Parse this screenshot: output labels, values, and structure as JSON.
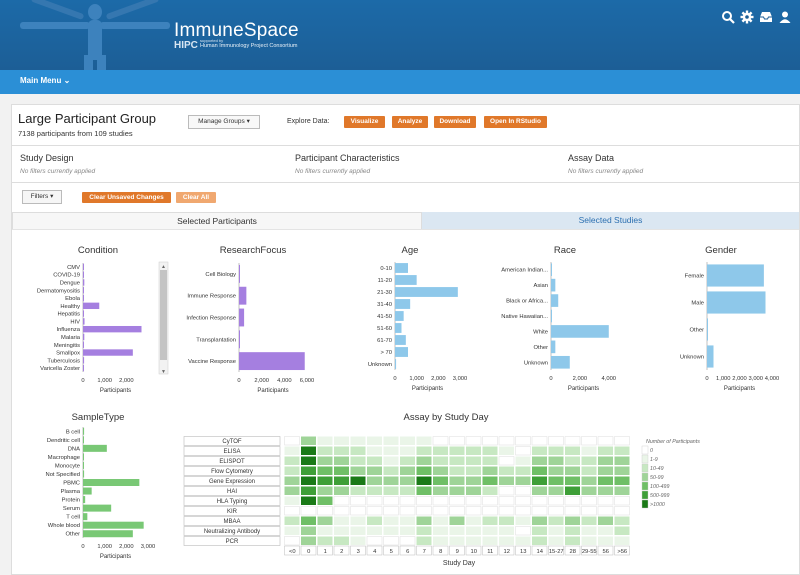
{
  "header": {
    "brand_title": "ImmuneSpace",
    "brand_sub_prefix": "HIPC",
    "brand_sub_small": "supported by",
    "brand_sub_text": "Human Immunology Project Consortium",
    "icons": [
      "search-icon",
      "gear-icon",
      "inbox-icon",
      "user-icon"
    ]
  },
  "menubar": {
    "main_menu": "Main Menu"
  },
  "group": {
    "title": "Large Participant Group",
    "count_text": "7138 participants from 109 studies",
    "manage_label": "Manage Groups",
    "explore_label": "Explore Data:",
    "buttons": [
      "Visualize",
      "Analyze",
      "Download",
      "Open In RStudio"
    ]
  },
  "sections": [
    {
      "title": "Study Design",
      "sub": "No filters currently applied"
    },
    {
      "title": "Participant Characteristics",
      "sub": "No filters currently applied"
    },
    {
      "title": "Assay Data",
      "sub": "No filters currently applied"
    }
  ],
  "filters": {
    "filters_label": "Filters",
    "clear_unsaved": "Clear Unsaved Changes",
    "clear_all": "Clear All"
  },
  "tabs": {
    "selected": "Selected Participants",
    "other": "Selected Studies"
  },
  "colors": {
    "condition": "#a57fe0",
    "age": "#8ec8ea",
    "sampletype": "#79c875",
    "orange": "#e0782a",
    "heat": [
      "#ffffff",
      "#eaf5e8",
      "#c7e8c2",
      "#9fd498",
      "#6fbf66",
      "#3e9f37",
      "#1a7a17"
    ]
  },
  "chart_data": [
    {
      "type": "bar",
      "title": "Condition",
      "xlabel": "Participants",
      "categories": [
        "CMV",
        "COVID-19",
        "Dengue",
        "Dermatomyositis",
        "Ebola",
        "Healthy",
        "Hepatitis",
        "HIV",
        "Influenza",
        "Malaria",
        "Meningitis",
        "Smallpox",
        "Tuberculosis",
        "Varicella Zoster"
      ],
      "values": [
        30,
        20,
        60,
        10,
        40,
        750,
        30,
        70,
        2700,
        60,
        40,
        2300,
        50,
        30
      ],
      "xticks": [
        "0",
        "1,000",
        "2,000"
      ],
      "xlim": [
        0,
        3000
      ]
    },
    {
      "type": "bar",
      "title": "ResearchFocus",
      "xlabel": "Participants",
      "categories": [
        "Cell Biology",
        "Immune Response",
        "Infection Response",
        "Transplantation",
        "Vaccine Response"
      ],
      "values": [
        30,
        650,
        450,
        50,
        5800
      ],
      "xticks": [
        "0",
        "2,000",
        "4,000",
        "6,000"
      ],
      "xlim": [
        0,
        6000
      ]
    },
    {
      "type": "bar",
      "title": "Age",
      "xlabel": "Participants",
      "categories": [
        "0-10",
        "11-20",
        "21-30",
        "31-40",
        "41-50",
        "51-60",
        "61-70",
        "> 70",
        "Unknown"
      ],
      "values": [
        600,
        1000,
        2900,
        700,
        400,
        300,
        500,
        600,
        50
      ],
      "xticks": [
        "0",
        "1,000",
        "2,000",
        "3,000"
      ],
      "xlim": [
        0,
        3000
      ]
    },
    {
      "type": "bar",
      "title": "Race",
      "xlabel": "Participants",
      "categories": [
        "American Indian...",
        "Asian",
        "Black or Africa...",
        "Native Hawaiian...",
        "White",
        "Other",
        "Unknown"
      ],
      "values": [
        30,
        300,
        500,
        20,
        4000,
        300,
        1300
      ],
      "xticks": [
        "0",
        "2,000",
        "4,000"
      ],
      "xlim": [
        0,
        4500
      ]
    },
    {
      "type": "bar",
      "title": "Gender",
      "xlabel": "Participants",
      "categories": [
        "Female",
        "Male",
        "Other",
        "Unknown"
      ],
      "values": [
        3500,
        3600,
        20,
        400
      ],
      "xticks": [
        "0",
        "1,000",
        "2,000",
        "3,000",
        "4,000"
      ],
      "xlim": [
        0,
        4000
      ]
    },
    {
      "type": "bar",
      "title": "SampleType",
      "xlabel": "Participants",
      "categories": [
        "B cell",
        "Dendritic cell",
        "DNA",
        "Macrophage",
        "Monocyte",
        "Not Specified",
        "PBMC",
        "Plasma",
        "Protein",
        "Serum",
        "T cell",
        "Whole blood",
        "Other"
      ],
      "values": [
        50,
        20,
        1100,
        20,
        20,
        50,
        2600,
        400,
        100,
        1300,
        200,
        2800,
        2300
      ],
      "xticks": [
        "0",
        "1,000",
        "2,000",
        "3,000"
      ],
      "xlim": [
        0,
        3000
      ]
    },
    {
      "type": "heatmap",
      "title": "Assay by Study Day",
      "xlabel": "Study Day",
      "x": [
        "<0",
        "0",
        "1",
        "2",
        "3",
        "4",
        "5",
        "6",
        "7",
        "8",
        "9",
        "10",
        "11",
        "12",
        "13",
        "14",
        "15-27",
        "28",
        "29-55",
        "56",
        ">56"
      ],
      "y": [
        "CyTOF",
        "ELISA",
        "ELISPOT",
        "Flow Cytometry",
        "Gene Expression",
        "HAI",
        "HLA Typing",
        "KIR",
        "MBAA",
        "Neutralizing Antibody",
        "PCR"
      ],
      "levels": [
        [
          0,
          3,
          1,
          1,
          1,
          1,
          1,
          1,
          1,
          0,
          0,
          0,
          0,
          0,
          0,
          0,
          0,
          0,
          0,
          0,
          0
        ],
        [
          1,
          6,
          2,
          2,
          2,
          1,
          1,
          1,
          2,
          2,
          2,
          2,
          2,
          1,
          0,
          2,
          2,
          2,
          1,
          2,
          2
        ],
        [
          2,
          6,
          3,
          3,
          2,
          2,
          1,
          2,
          3,
          2,
          2,
          2,
          2,
          0,
          1,
          3,
          3,
          2,
          2,
          3,
          3
        ],
        [
          2,
          5,
          4,
          4,
          3,
          3,
          2,
          3,
          4,
          3,
          2,
          2,
          3,
          2,
          2,
          4,
          3,
          3,
          2,
          3,
          3
        ],
        [
          3,
          6,
          5,
          5,
          6,
          3,
          3,
          3,
          6,
          4,
          3,
          3,
          4,
          3,
          3,
          5,
          4,
          4,
          3,
          4,
          4
        ],
        [
          3,
          5,
          3,
          3,
          2,
          2,
          2,
          2,
          4,
          3,
          3,
          3,
          2,
          0,
          0,
          3,
          3,
          5,
          3,
          3,
          3
        ],
        [
          1,
          6,
          4,
          0,
          0,
          0,
          0,
          0,
          0,
          0,
          0,
          0,
          0,
          0,
          0,
          0,
          0,
          0,
          0,
          0,
          0
        ],
        [
          0,
          0,
          0,
          0,
          0,
          0,
          0,
          0,
          0,
          0,
          0,
          0,
          0,
          0,
          0,
          0,
          0,
          0,
          0,
          0,
          0
        ],
        [
          2,
          4,
          3,
          1,
          1,
          2,
          1,
          1,
          3,
          1,
          3,
          1,
          2,
          2,
          1,
          3,
          2,
          3,
          2,
          3,
          2
        ],
        [
          1,
          3,
          1,
          1,
          1,
          1,
          1,
          1,
          2,
          1,
          1,
          1,
          1,
          1,
          0,
          2,
          1,
          2,
          1,
          1,
          2
        ],
        [
          0,
          3,
          2,
          2,
          1,
          0,
          0,
          0,
          2,
          1,
          1,
          1,
          1,
          1,
          1,
          2,
          1,
          2,
          1,
          1,
          1
        ]
      ],
      "legend_title": "Number of Participants",
      "legend": [
        "0",
        "1-9",
        "10-49",
        "50-99",
        "100-499",
        "500-999",
        ">1000"
      ]
    }
  ]
}
